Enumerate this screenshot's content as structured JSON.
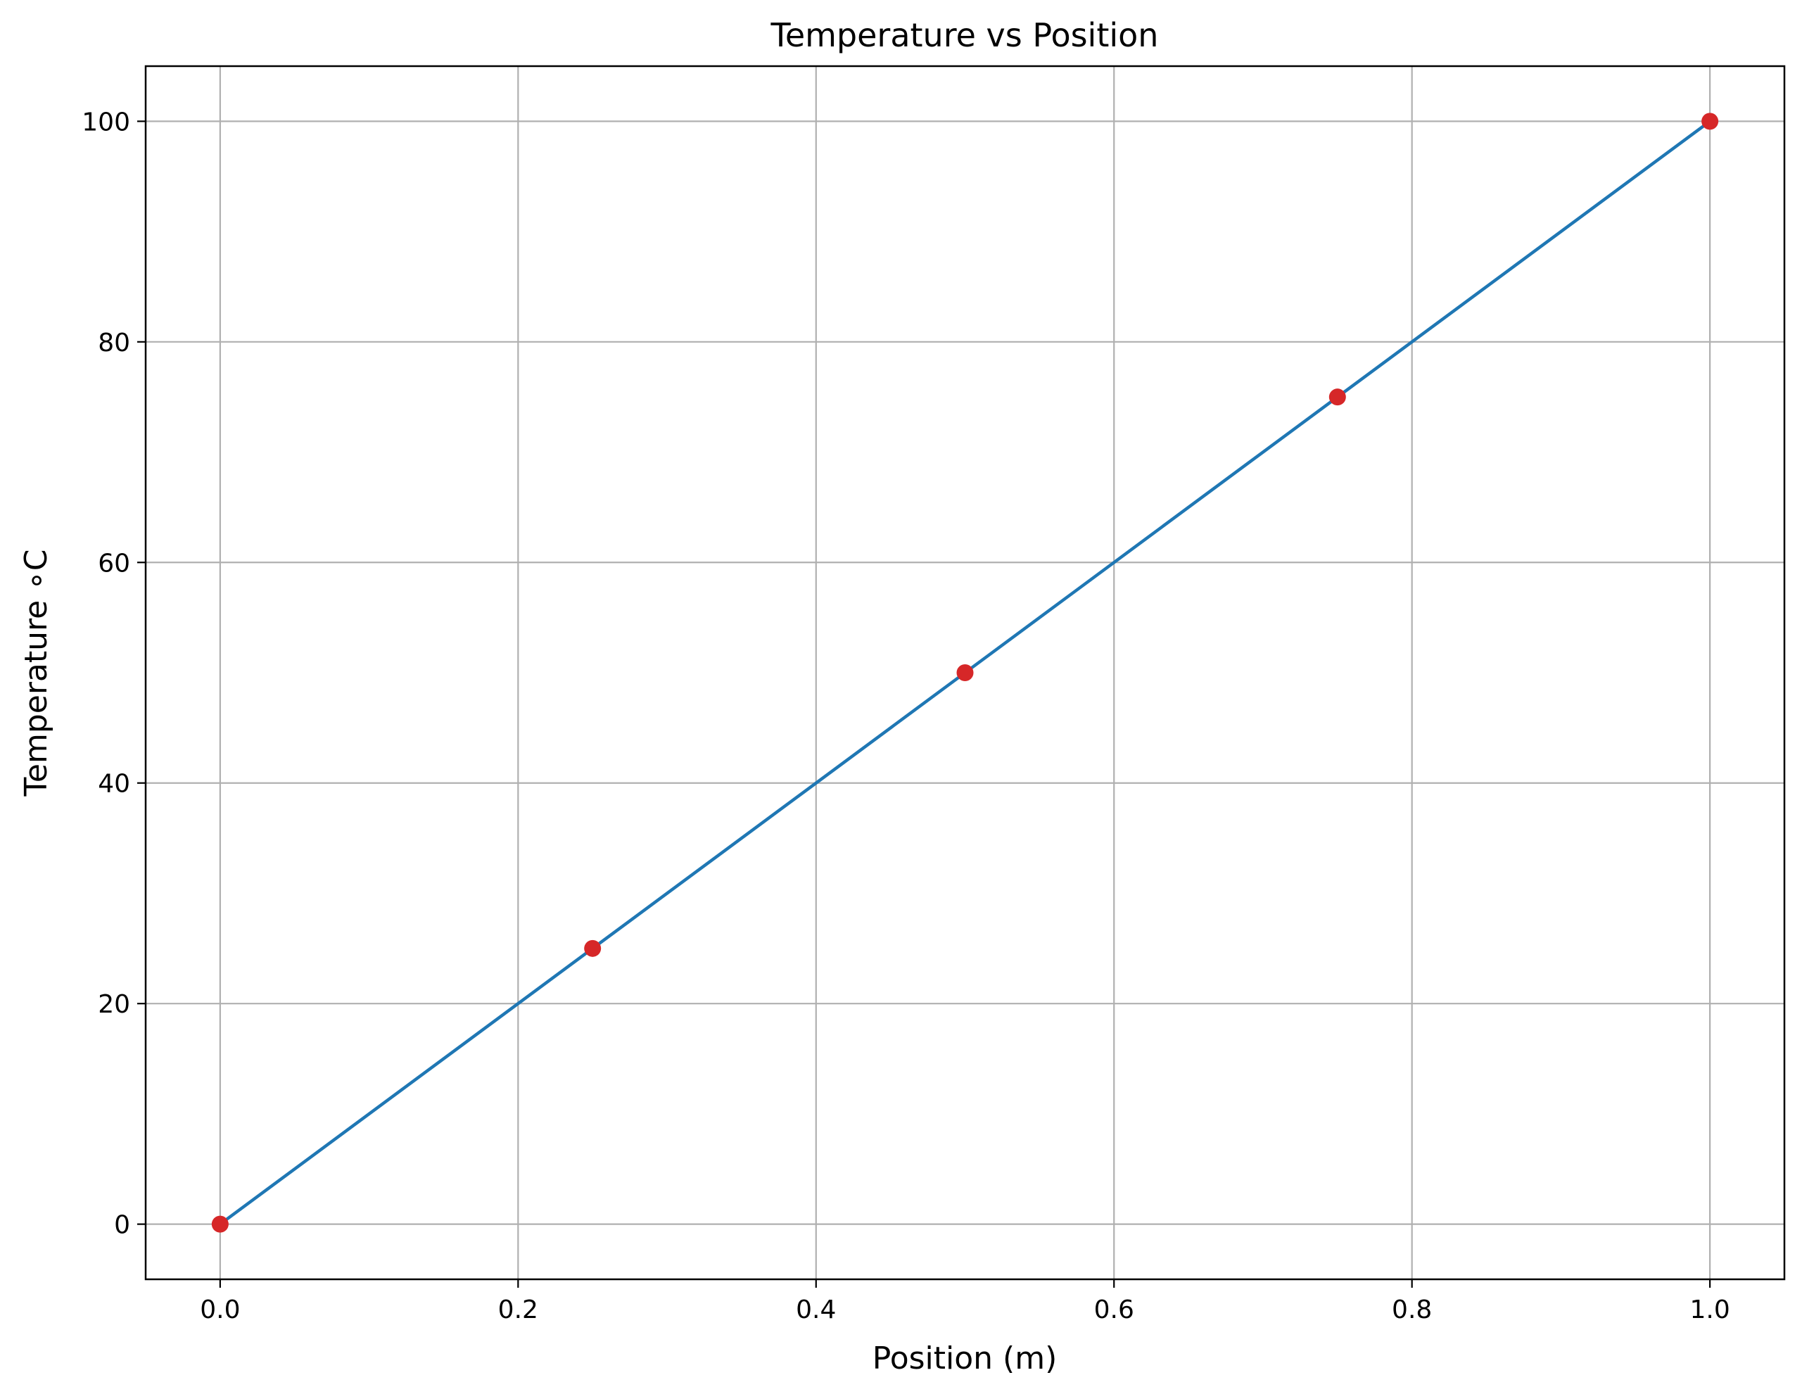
{
  "chart_data": {
    "type": "line",
    "title": "Temperature vs Position",
    "xlabel": "Position (m)",
    "ylabel": "Temperature ∘C",
    "xlim": [
      -0.05,
      1.05
    ],
    "ylim": [
      -5,
      105
    ],
    "xticks": [
      0.0,
      0.2,
      0.4,
      0.6,
      0.8,
      1.0
    ],
    "xtick_labels": [
      "0.0",
      "0.2",
      "0.4",
      "0.6",
      "0.8",
      "1.0"
    ],
    "yticks": [
      0,
      20,
      40,
      60,
      80,
      100
    ],
    "ytick_labels": [
      "0",
      "20",
      "40",
      "60",
      "80",
      "100"
    ],
    "grid": true,
    "legend": "none",
    "series": [
      {
        "kind": "line",
        "color": "#1f77b4",
        "x": [
          0.0,
          0.25,
          0.5,
          0.75,
          1.0
        ],
        "y": [
          0,
          25,
          50,
          75,
          100
        ]
      },
      {
        "kind": "scatter",
        "color": "#d62728",
        "x": [
          0.0,
          0.25,
          0.5,
          0.75,
          1.0
        ],
        "y": [
          0,
          25,
          50,
          75,
          100
        ]
      }
    ]
  }
}
